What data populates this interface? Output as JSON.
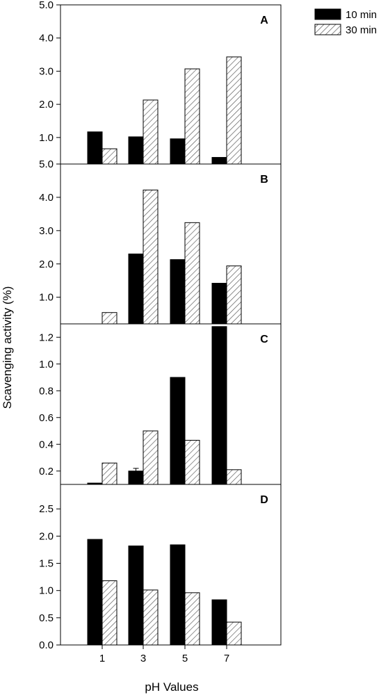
{
  "chart_data": {
    "type": "bar",
    "ylabel": "Scavenging activity (%)",
    "xlabel": "pH Values",
    "categories": [
      "1",
      "3",
      "5",
      "7"
    ],
    "legend": {
      "placement": "top-right-outside",
      "entries": [
        {
          "name": "10 min",
          "fill": "solid-black"
        },
        {
          "name": "30 min",
          "fill": "diagonal-hatch"
        }
      ]
    },
    "colors": {
      "solid": "#000000",
      "hatch_line": "#555555"
    },
    "panels": [
      {
        "label": "A",
        "ylim": [
          0.2,
          5.0
        ],
        "yticks": [
          1.0,
          2.0,
          3.0,
          4.0,
          5.0
        ],
        "tick_labels": [
          "1.0",
          "2.0",
          "3.0",
          "4.0",
          "5.0"
        ],
        "series": [
          {
            "name": "10 min",
            "values": [
              1.17,
              1.02,
              0.96,
              0.4
            ],
            "errors": [
              0,
              0,
              0,
              0
            ]
          },
          {
            "name": "30 min",
            "values": [
              0.66,
              2.13,
              3.07,
              3.43
            ],
            "errors": [
              0,
              0,
              0,
              0
            ]
          }
        ]
      },
      {
        "label": "B",
        "ylim": [
          0.2,
          5.0
        ],
        "yticks": [
          1.0,
          2.0,
          3.0,
          4.0,
          5.0
        ],
        "tick_labels": [
          "1.0",
          "2.0",
          "3.0",
          "4.0",
          "5.0"
        ],
        "series": [
          {
            "name": "10 min",
            "values": [
              0.0,
              2.3,
              2.13,
              1.42
            ],
            "errors": [
              0,
              0,
              0,
              0
            ]
          },
          {
            "name": "30 min",
            "values": [
              0.54,
              4.22,
              3.24,
              1.94
            ],
            "errors": [
              0,
              0,
              0,
              0
            ]
          }
        ]
      },
      {
        "label": "C",
        "ylim": [
          0.1,
          1.3
        ],
        "yticks": [
          0.2,
          0.4,
          0.6,
          0.8,
          1.0,
          1.2
        ],
        "tick_labels": [
          "0.2",
          "0.4",
          "0.6",
          "0.8",
          "1.0",
          "1.2"
        ],
        "series": [
          {
            "name": "10 min",
            "values": [
              0.11,
              0.2,
              0.9,
              1.28
            ],
            "errors": [
              0,
              0.02,
              0,
              0
            ]
          },
          {
            "name": "30 min",
            "values": [
              0.26,
              0.5,
              0.43,
              0.21
            ],
            "errors": [
              0,
              0,
              0,
              0
            ]
          }
        ]
      },
      {
        "label": "D",
        "ylim": [
          0.0,
          2.95
        ],
        "yticks": [
          0.0,
          0.5,
          1.0,
          1.5,
          2.0,
          2.5
        ],
        "tick_labels": [
          "0.0",
          "0.5",
          "1.0",
          "1.5",
          "2.0",
          "2.5"
        ],
        "series": [
          {
            "name": "10 min",
            "values": [
              1.94,
              1.82,
              1.84,
              0.83
            ],
            "errors": [
              0,
              0,
              0,
              0
            ]
          },
          {
            "name": "30 min",
            "values": [
              1.18,
              1.01,
              0.96,
              0.42
            ],
            "errors": [
              0,
              0,
              0,
              0
            ]
          }
        ]
      }
    ]
  }
}
